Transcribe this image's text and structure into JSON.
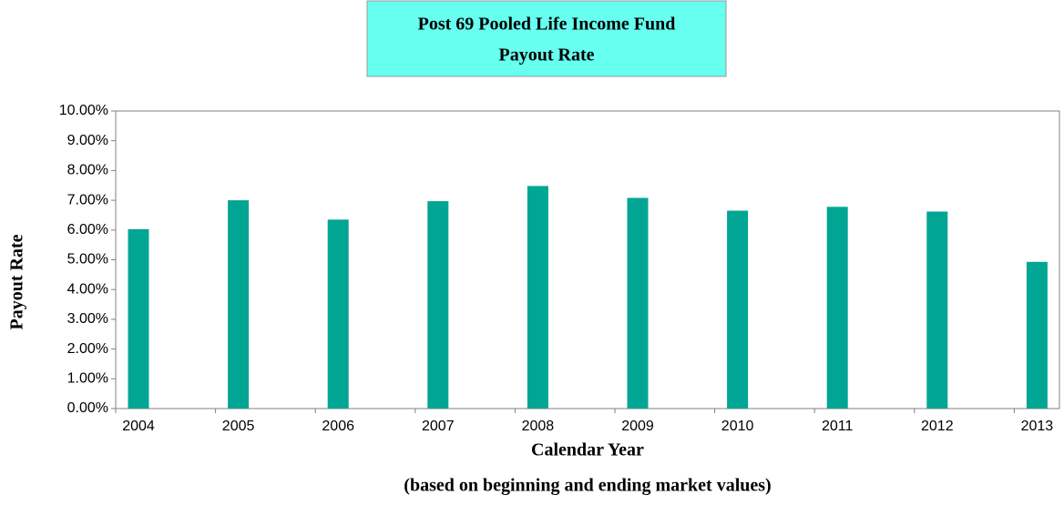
{
  "chart_data": {
    "type": "bar",
    "title": "Post 69 Pooled Life Income Fund",
    "subtitle": "Payout Rate",
    "x_label": "Calendar Year",
    "x_note": "(based on beginning and ending market values)",
    "y_label": "Payout Rate",
    "categories": [
      "2004",
      "2005",
      "2006",
      "2007",
      "2008",
      "2009",
      "2010",
      "2011",
      "2012",
      "2013"
    ],
    "values": [
      6.03,
      7.0,
      6.35,
      6.97,
      7.48,
      7.08,
      6.65,
      6.78,
      6.62,
      4.93
    ],
    "color": "#00a693",
    "ylim": [
      0,
      10
    ],
    "yticks": [
      {
        "value": 0,
        "label": "0.00%"
      },
      {
        "value": 1,
        "label": "1.00%"
      },
      {
        "value": 2,
        "label": "2.00%"
      },
      {
        "value": 3,
        "label": "3.00%"
      },
      {
        "value": 4,
        "label": "4.00%"
      },
      {
        "value": 5,
        "label": "5.00%"
      },
      {
        "value": 6,
        "label": "6.00%"
      },
      {
        "value": 7,
        "label": "7.00%"
      },
      {
        "value": 8,
        "label": "8.00%"
      },
      {
        "value": 9,
        "label": "9.00%"
      },
      {
        "value": 10,
        "label": "10.00%"
      }
    ],
    "grid": false
  }
}
